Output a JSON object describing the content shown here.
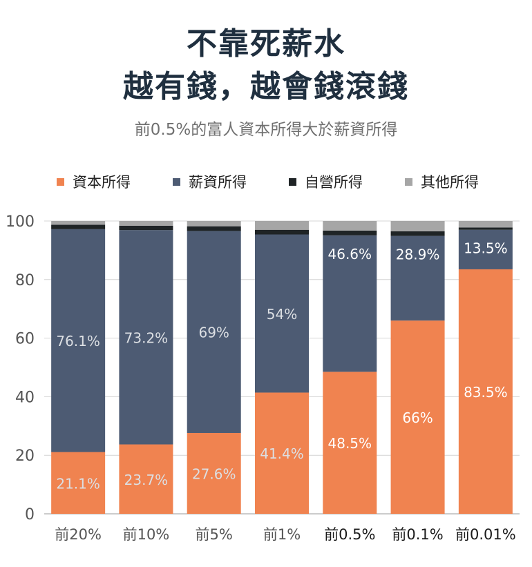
{
  "header": {
    "title_line1": "不靠死薪水",
    "title_line2": "越有錢，越會錢滾錢",
    "subtitle": "前0.5%的富人資本所得大於薪資所得"
  },
  "legend": [
    {
      "label": "資本所得",
      "color": "#f08350"
    },
    {
      "label": "薪資所得",
      "color": "#4d5b73"
    },
    {
      "label": "自營所得",
      "color": "#1f2426"
    },
    {
      "label": "其他所得",
      "color": "#a6a6a6"
    }
  ],
  "chart_data": {
    "type": "bar",
    "stacked": true,
    "title": "",
    "xlabel": "",
    "ylabel": "",
    "ylim": [
      0,
      100
    ],
    "yticks": [
      0,
      20,
      40,
      60,
      80,
      100
    ],
    "grid": true,
    "legend_position": "top",
    "categories": [
      "前20%",
      "前10%",
      "前5%",
      "前1%",
      "前0.5%",
      "前0.1%",
      "前0.01%"
    ],
    "highlighted_categories": [
      "前0.5%",
      "前0.1%",
      "前0.01%"
    ],
    "series": [
      {
        "name": "資本所得",
        "color": "#f08350",
        "values": [
          21.1,
          23.7,
          27.6,
          41.4,
          48.5,
          66,
          83.5
        ],
        "labels": [
          "21.1%",
          "23.7%",
          "27.6%",
          "41.4%",
          "48.5%",
          "66%",
          "83.5%"
        ]
      },
      {
        "name": "薪資所得",
        "color": "#4d5b73",
        "values": [
          76.1,
          73.2,
          69,
          54,
          46.6,
          28.9,
          13.5
        ],
        "labels": [
          "76.1%",
          "73.2%",
          "69%",
          "54%",
          "46.6%",
          "28.9%",
          "13.5%"
        ]
      },
      {
        "name": "自營所得",
        "color": "#1f2426",
        "values": [
          1.5,
          1.5,
          1.6,
          1.6,
          1.6,
          1.6,
          0.8
        ]
      },
      {
        "name": "其他所得",
        "color": "#a6a6a6",
        "values": [
          1.3,
          1.6,
          1.8,
          3.0,
          3.3,
          3.5,
          2.2
        ]
      }
    ]
  }
}
